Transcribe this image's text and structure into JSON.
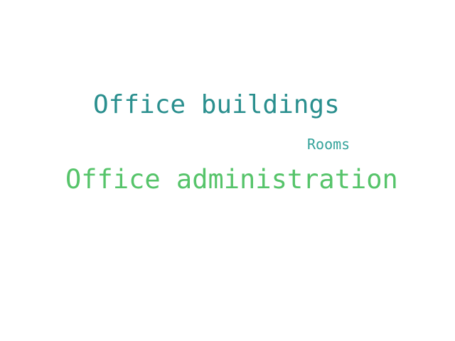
{
  "words": [
    {
      "text": "Office buildings",
      "color": "#2a8f8e"
    },
    {
      "text": "Rooms",
      "color": "#33a29a"
    },
    {
      "text": "Office administration",
      "color": "#56c46a"
    }
  ]
}
